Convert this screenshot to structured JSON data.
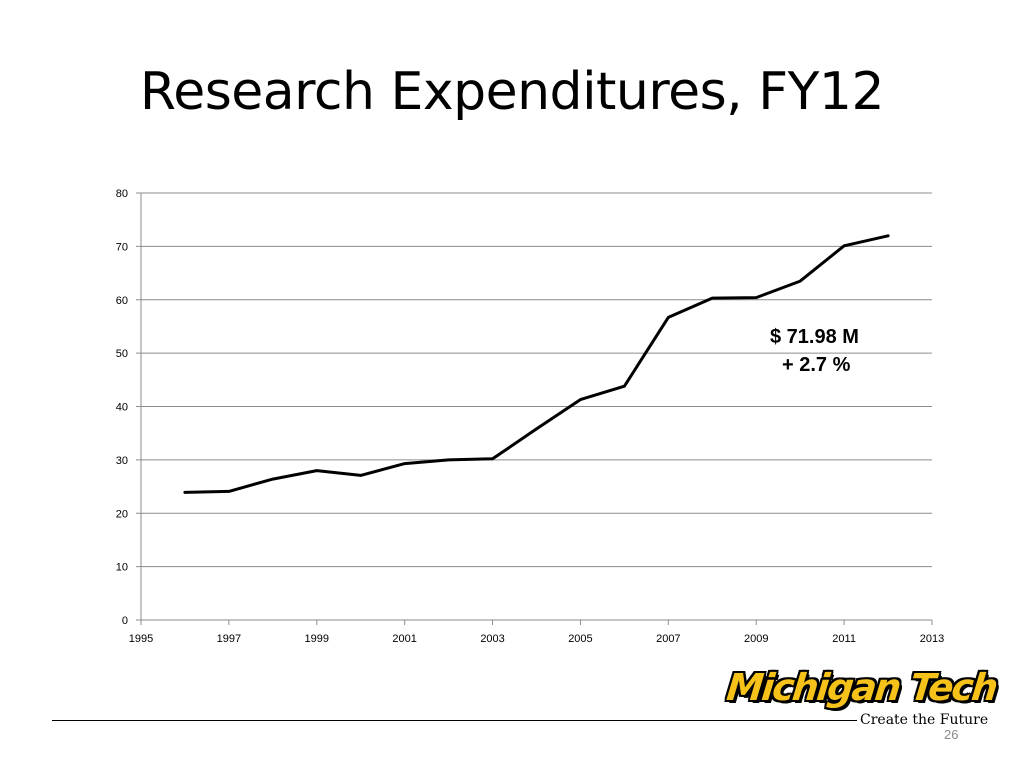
{
  "slide": {
    "title": "Research Expenditures, FY12",
    "annotation_line1": "$ 71.98 M",
    "annotation_line2": "+ 2.7 %",
    "page_number": "26"
  },
  "logo": {
    "wordmark": "Michigan Tech",
    "tagline": "Create the Future",
    "colors": {
      "wordmark_fill": "#f6c21a",
      "wordmark_outline": "#000000"
    }
  },
  "chart_data": {
    "type": "line",
    "title": "",
    "xlabel": "",
    "ylabel": "",
    "xlim": [
      1995,
      2013
    ],
    "ylim": [
      0,
      80
    ],
    "x_ticks": [
      1995,
      1997,
      1999,
      2001,
      2003,
      2005,
      2007,
      2009,
      2011,
      2013
    ],
    "y_ticks": [
      0,
      10,
      20,
      30,
      40,
      50,
      60,
      70,
      80
    ],
    "grid": "horizontal",
    "legend": "none",
    "series": [
      {
        "color": "#000000",
        "x": [
          1996,
          1997,
          1998,
          1999,
          2000,
          2001,
          2002,
          2003,
          2004,
          2005,
          2006,
          2007,
          2008,
          2009,
          2010,
          2011,
          2012
        ],
        "y": [
          23.9,
          24.1,
          26.4,
          28.0,
          27.1,
          29.3,
          30.0,
          30.2,
          35.8,
          41.3,
          43.8,
          56.7,
          60.3,
          60.4,
          63.5,
          70.1,
          71.98
        ]
      }
    ]
  }
}
